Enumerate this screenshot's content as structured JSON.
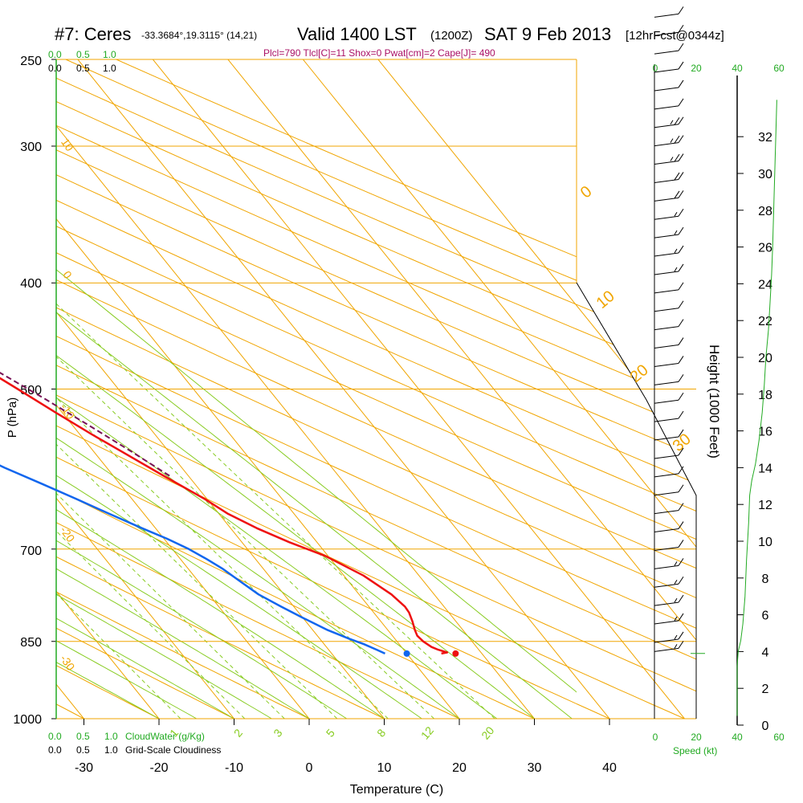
{
  "header": {
    "station": "#7: Ceres",
    "coords": "-33.3684°,19.3115° (14,21)",
    "valid": "Valid 1400 LST",
    "zulu": "(1200Z)",
    "date": "SAT 9 Feb 2013",
    "forecast": "[12hrFcst@0344z]",
    "indices": "Plcl=790 Tlcl[C]=11 Shox=0 Pwat[cm]=2 Cape[J]= 490"
  },
  "colors": {
    "temperature": "#ee1111",
    "dewpoint": "#1166ee",
    "parcel": "#771155",
    "isotherm": "#f0a500",
    "dry_adiabat": "#f0a500",
    "moist_adiabat": "#88cc22",
    "mixing_ratio": "#88cc22",
    "green_text": "#22aa22",
    "black": "#000000"
  },
  "chart_data": {
    "type": "skew-t",
    "title": "",
    "xlabel": "Temperature (C)",
    "ylabel": "P (hPa)",
    "y2label": "Height (1000 Feet)",
    "x_ticks": [
      -30,
      -20,
      -10,
      0,
      10,
      20,
      30,
      40
    ],
    "pressure_ticks": [
      250,
      300,
      400,
      500,
      700,
      850,
      1000
    ],
    "height_ticks": [
      0,
      2,
      4,
      6,
      8,
      10,
      12,
      14,
      16,
      18,
      20,
      22,
      24,
      26,
      28,
      30,
      32
    ],
    "mixing_ratio_labels": [
      "1",
      "2",
      "3",
      "5",
      "8",
      "12",
      "20"
    ],
    "isotherm_labels": [
      "10",
      "0",
      "-10",
      "-20",
      "-30"
    ],
    "adiabat_labels": [
      "0",
      "10",
      "20",
      "30"
    ],
    "cloud_scale_top_green": [
      "0.0",
      "0.5",
      "1.0"
    ],
    "cloud_scale_top_black": [
      "0.0",
      "0.5",
      "1.0"
    ],
    "cloudwater_label": "CloudWater (g/Kg)",
    "cloudiness_label": "Grid-Scale Cloudiness",
    "cloud_scale_bottom_green": [
      "0.0",
      "0.5",
      "1.0"
    ],
    "cloud_scale_bottom_black": [
      "0.0",
      "0.5",
      "1.0"
    ],
    "speed_label": "Speed (kt)",
    "speed_ticks": [
      "0",
      "20",
      "40",
      "60"
    ],
    "series": [
      {
        "name": "temperature",
        "points": [
          [
            872,
            24.6
          ],
          [
            870,
            25.5
          ],
          [
            865,
            24.6
          ],
          [
            860,
            24.0
          ],
          [
            850,
            23.5
          ],
          [
            840,
            23.3
          ],
          [
            830,
            23.6
          ],
          [
            815,
            24.2
          ],
          [
            800,
            24.7
          ],
          [
            790,
            24.8
          ],
          [
            770,
            24.3
          ],
          [
            740,
            22.6
          ],
          [
            710,
            19.6
          ],
          [
            690,
            16.3
          ],
          [
            670,
            13.5
          ],
          [
            650,
            11.2
          ],
          [
            630,
            9.7
          ],
          [
            600,
            6.7
          ],
          [
            570,
            3.7
          ],
          [
            550,
            1.6
          ],
          [
            525,
            -0.9
          ],
          [
            500,
            -3.4
          ],
          [
            475,
            -6.1
          ],
          [
            450,
            -9.1
          ],
          [
            420,
            -12.2
          ],
          [
            400,
            -14.7
          ],
          [
            380,
            -17.5
          ],
          [
            360,
            -20.4
          ],
          [
            340,
            -24.5
          ],
          [
            320,
            -28.6
          ],
          [
            300,
            -32.5
          ],
          [
            280,
            -37.0
          ],
          [
            262,
            -41.2
          ],
          [
            253,
            -43.8
          ]
        ]
      },
      {
        "name": "dewpoint",
        "points": [
          [
            872,
            17.1
          ],
          [
            865,
            16.4
          ],
          [
            855,
            15.3
          ],
          [
            845,
            13.9
          ],
          [
            830,
            12.0
          ],
          [
            810,
            10.1
          ],
          [
            790,
            8.3
          ],
          [
            770,
            6.6
          ],
          [
            750,
            5.6
          ],
          [
            730,
            4.6
          ],
          [
            715,
            3.5
          ],
          [
            700,
            2.2
          ],
          [
            685,
            0.4
          ],
          [
            670,
            -1.8
          ],
          [
            650,
            -4.6
          ],
          [
            630,
            -7.4
          ],
          [
            610,
            -10.4
          ],
          [
            590,
            -13.6
          ],
          [
            570,
            -16.4
          ],
          [
            550,
            -18.6
          ],
          [
            530,
            -21.3
          ],
          [
            510,
            -24.0
          ],
          [
            490,
            -26.9
          ],
          [
            470,
            -30.0
          ],
          [
            450,
            -33.2
          ],
          [
            430,
            -35.3
          ],
          [
            410,
            -37.2
          ],
          [
            390,
            -38.5
          ],
          [
            380,
            -37.5
          ],
          [
            370,
            -38.4
          ],
          [
            355,
            -39.2
          ],
          [
            340,
            -41.2
          ],
          [
            320,
            -44.3
          ],
          [
            300,
            -48.6
          ],
          [
            285,
            -52.2
          ],
          [
            270,
            -56.0
          ],
          [
            253,
            -60.6
          ]
        ]
      },
      {
        "name": "parcel",
        "points": [
          [
            600,
            7.5
          ],
          [
            570,
            5.0
          ],
          [
            540,
            2.2
          ],
          [
            510,
            -0.9
          ],
          [
            480,
            -4.4
          ],
          [
            450,
            -8.2
          ],
          [
            420,
            -12.3
          ],
          [
            390,
            -16.6
          ],
          [
            360,
            -21.3
          ],
          [
            330,
            -26.4
          ],
          [
            300,
            -32.2
          ],
          [
            280,
            -36.1
          ],
          [
            265,
            -39.5
          ],
          [
            253,
            -42.5
          ]
        ]
      }
    ],
    "surface_temperature": 26.5,
    "surface_dewpoint": 20.0,
    "surface_pressure": 872,
    "wind_barbs_kt": [
      [
        40.5,
        5
      ],
      [
        39.5,
        10
      ],
      [
        38.5,
        10
      ],
      [
        37.5,
        10
      ],
      [
        36.5,
        10
      ],
      [
        35.5,
        10
      ],
      [
        34.5,
        10
      ],
      [
        33.5,
        10
      ],
      [
        32.5,
        25
      ],
      [
        31.5,
        25
      ],
      [
        30.5,
        25
      ],
      [
        29.5,
        20
      ],
      [
        28.5,
        20
      ],
      [
        27.5,
        15
      ],
      [
        26.5,
        15
      ],
      [
        25.5,
        15
      ],
      [
        24.5,
        15
      ],
      [
        23.5,
        10
      ],
      [
        22.5,
        10
      ],
      [
        21.5,
        10
      ],
      [
        20.5,
        10
      ],
      [
        19.5,
        10
      ],
      [
        18.5,
        10
      ],
      [
        17.5,
        10
      ],
      [
        16.5,
        10
      ],
      [
        15.5,
        10
      ],
      [
        14.5,
        10
      ],
      [
        13.5,
        10
      ],
      [
        12.5,
        10
      ],
      [
        11.5,
        10
      ],
      [
        10.5,
        10
      ],
      [
        9.5,
        10
      ],
      [
        8.5,
        15
      ],
      [
        7.5,
        15
      ],
      [
        6.5,
        15
      ],
      [
        5.5,
        15
      ],
      [
        4.5,
        15
      ],
      [
        4.0,
        15
      ]
    ],
    "wind_speed_profile": [
      [
        0.5,
        0.0
      ],
      [
        3.2,
        0.0
      ],
      [
        4.0,
        1.0
      ],
      [
        4.6,
        3.5
      ],
      [
        5.5,
        5.5
      ],
      [
        7.0,
        7.5
      ],
      [
        9.0,
        9.0
      ],
      [
        11.0,
        11.0
      ],
      [
        12.5,
        12.0
      ],
      [
        13.3,
        14.0
      ],
      [
        14.2,
        17.5
      ],
      [
        15.5,
        21.0
      ],
      [
        17.0,
        24.0
      ],
      [
        18.5,
        26.0
      ],
      [
        20.0,
        27.5
      ],
      [
        21.5,
        30.0
      ],
      [
        23.0,
        31.5
      ],
      [
        24.5,
        33.0
      ],
      [
        26.0,
        34.0
      ],
      [
        28.0,
        35.0
      ],
      [
        30.0,
        36.0
      ],
      [
        32.0,
        37.0
      ],
      [
        34.0,
        38.0
      ]
    ]
  }
}
